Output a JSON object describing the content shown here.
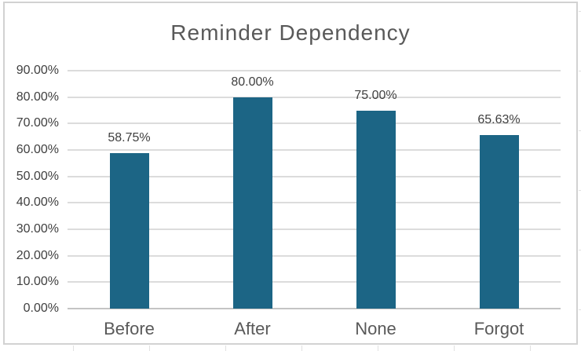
{
  "chart_data": {
    "type": "bar",
    "title": "Reminder Dependency",
    "categories": [
      "Before",
      "After",
      "None",
      "Forgot"
    ],
    "values": [
      58.75,
      80.0,
      75.0,
      65.63
    ],
    "data_labels": [
      "58.75%",
      "80.00%",
      "75.00%",
      "65.63%"
    ],
    "y_ticks": [
      "0.00%",
      "10.00%",
      "20.00%",
      "30.00%",
      "40.00%",
      "50.00%",
      "60.00%",
      "70.00%",
      "80.00%",
      "90.00%"
    ],
    "ylim": [
      0,
      90
    ],
    "y_tick_step": 10,
    "xlabel": "",
    "ylabel": "",
    "grid": "horizontal",
    "legend": "none",
    "colors": {
      "bar_fill": "#1C6585",
      "gridline": "#dcdcdc",
      "axis_line": "#c4c4c4",
      "chart_border": "#d2d2d2",
      "title_text": "#595959",
      "category_text": "#595959",
      "tick_text": "#404040",
      "data_label_text": "#3f3f3f",
      "background": "#ffffff"
    }
  }
}
